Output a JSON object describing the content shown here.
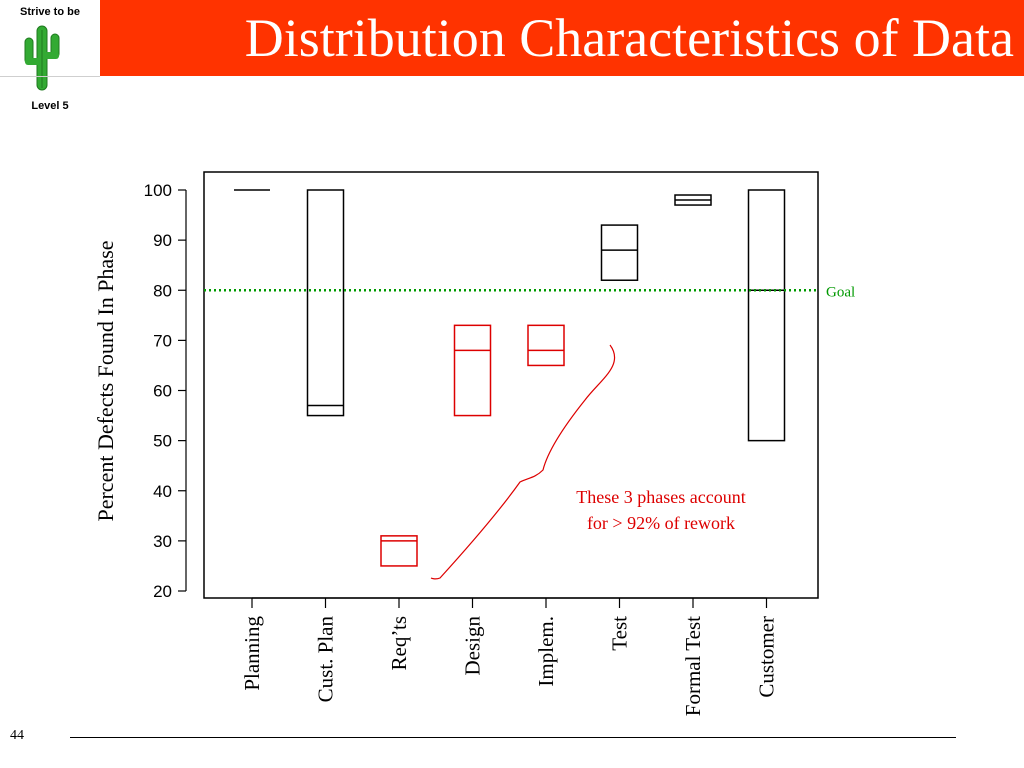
{
  "slide": {
    "title": "Distribution Characteristics of Data",
    "page_number": "44",
    "header_color": "#ff3300"
  },
  "logo": {
    "top_text": "Strive to be",
    "bottom_text": "Level 5",
    "icon": "cactus-icon",
    "icon_color": "#33aa33"
  },
  "chart_data": {
    "type": "box",
    "ylabel": "Percent Defects Found In Phase",
    "ylim": [
      20,
      100
    ],
    "yticks": [
      20,
      30,
      40,
      50,
      60,
      70,
      80,
      90,
      100
    ],
    "grid": false,
    "categories": [
      "Planning",
      "Cust. Plan",
      "Req’ts",
      "Design",
      "Implem.",
      "Test",
      "Formal Test",
      "Customer"
    ],
    "boxes": [
      {
        "category": "Planning",
        "q1": 100,
        "median": 100,
        "q3": 100,
        "color": "#000000"
      },
      {
        "category": "Cust. Plan",
        "q1": 55,
        "median": 57,
        "q3": 100,
        "color": "#000000"
      },
      {
        "category": "Req’ts",
        "q1": 25,
        "median": 30,
        "q3": 31,
        "color": "#dd0000"
      },
      {
        "category": "Design",
        "q1": 55,
        "median": 68,
        "q3": 73,
        "color": "#dd0000"
      },
      {
        "category": "Implem.",
        "q1": 65,
        "median": 68,
        "q3": 73,
        "color": "#dd0000"
      },
      {
        "category": "Test",
        "q1": 82,
        "median": 88,
        "q3": 93,
        "color": "#000000"
      },
      {
        "category": "Formal Test",
        "q1": 97,
        "median": 98,
        "q3": 99,
        "color": "#000000"
      },
      {
        "category": "Customer",
        "q1": 50,
        "median": 80,
        "q3": 100,
        "color": "#000000"
      }
    ],
    "reference_line": {
      "value": 80,
      "label": "Goal",
      "color": "#009900",
      "style": "dotted"
    },
    "annotation": {
      "lines": [
        "These 3 phases account",
        "for > 92% of rework"
      ],
      "color": "#dd0000"
    }
  }
}
